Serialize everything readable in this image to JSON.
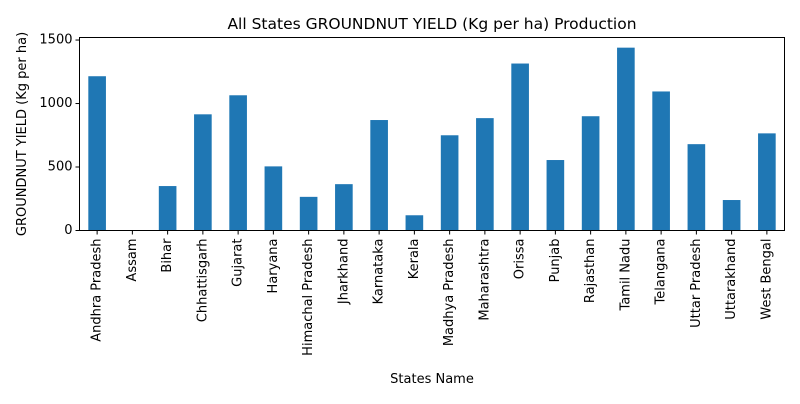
{
  "chart_data": {
    "type": "bar",
    "title": "All States GROUNDNUT YIELD (Kg per ha) Production",
    "xlabel": "States Name",
    "ylabel": "GROUNDNUT YIELD (Kg per ha)",
    "ylim": [
      0,
      1520
    ],
    "yticks": [
      0,
      500,
      1000,
      1500
    ],
    "grid": false,
    "legend": "none",
    "bar_color": "#1f77b4",
    "categories": [
      "Andhra Pradesh",
      "Assam",
      "Bihar",
      "Chhattisgarh",
      "Gujarat",
      "Haryana",
      "Himachal Pradesh",
      "Jharkhand",
      "Karnataka",
      "Kerala",
      "Madhya Pradesh",
      "Maharashtra",
      "Orissa",
      "Punjab",
      "Rajasthan",
      "Tamil Nadu",
      "Telangana",
      "Uttar Pradesh",
      "Uttarakhand",
      "West Bengal"
    ],
    "values": [
      1215,
      0,
      350,
      915,
      1065,
      505,
      265,
      365,
      870,
      120,
      750,
      885,
      1315,
      555,
      900,
      1440,
      1095,
      680,
      240,
      765
    ]
  }
}
